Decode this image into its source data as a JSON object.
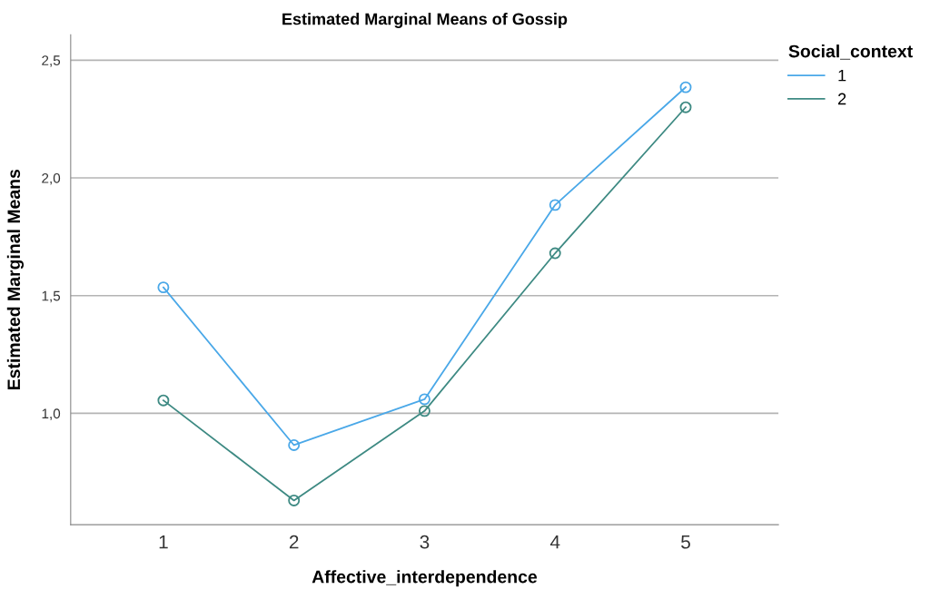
{
  "chart_data": {
    "type": "line",
    "title": "Estimated Marginal Means of Gossip",
    "xlabel": "Affective_interdependence",
    "ylabel": "Estimated Marginal Means",
    "legend_title": "Social_context",
    "categories": [
      "1",
      "2",
      "3",
      "4",
      "5"
    ],
    "series": [
      {
        "name": "1",
        "color": "#4aa8e8",
        "values": [
          1.535,
          0.865,
          1.06,
          1.885,
          2.385
        ]
      },
      {
        "name": "2",
        "color": "#3e8a83",
        "values": [
          1.055,
          0.63,
          1.01,
          1.68,
          2.3
        ]
      }
    ],
    "ylim": [
      0.527,
      2.608
    ],
    "yticks": [
      {
        "value": 1.0,
        "label": "1,0"
      },
      {
        "value": 1.5,
        "label": "1,5"
      },
      {
        "value": 2.0,
        "label": "2,0"
      },
      {
        "value": 2.5,
        "label": "2,5"
      }
    ],
    "grid": "y",
    "legend": "top right",
    "marker": "circle",
    "line_style": "solid"
  }
}
